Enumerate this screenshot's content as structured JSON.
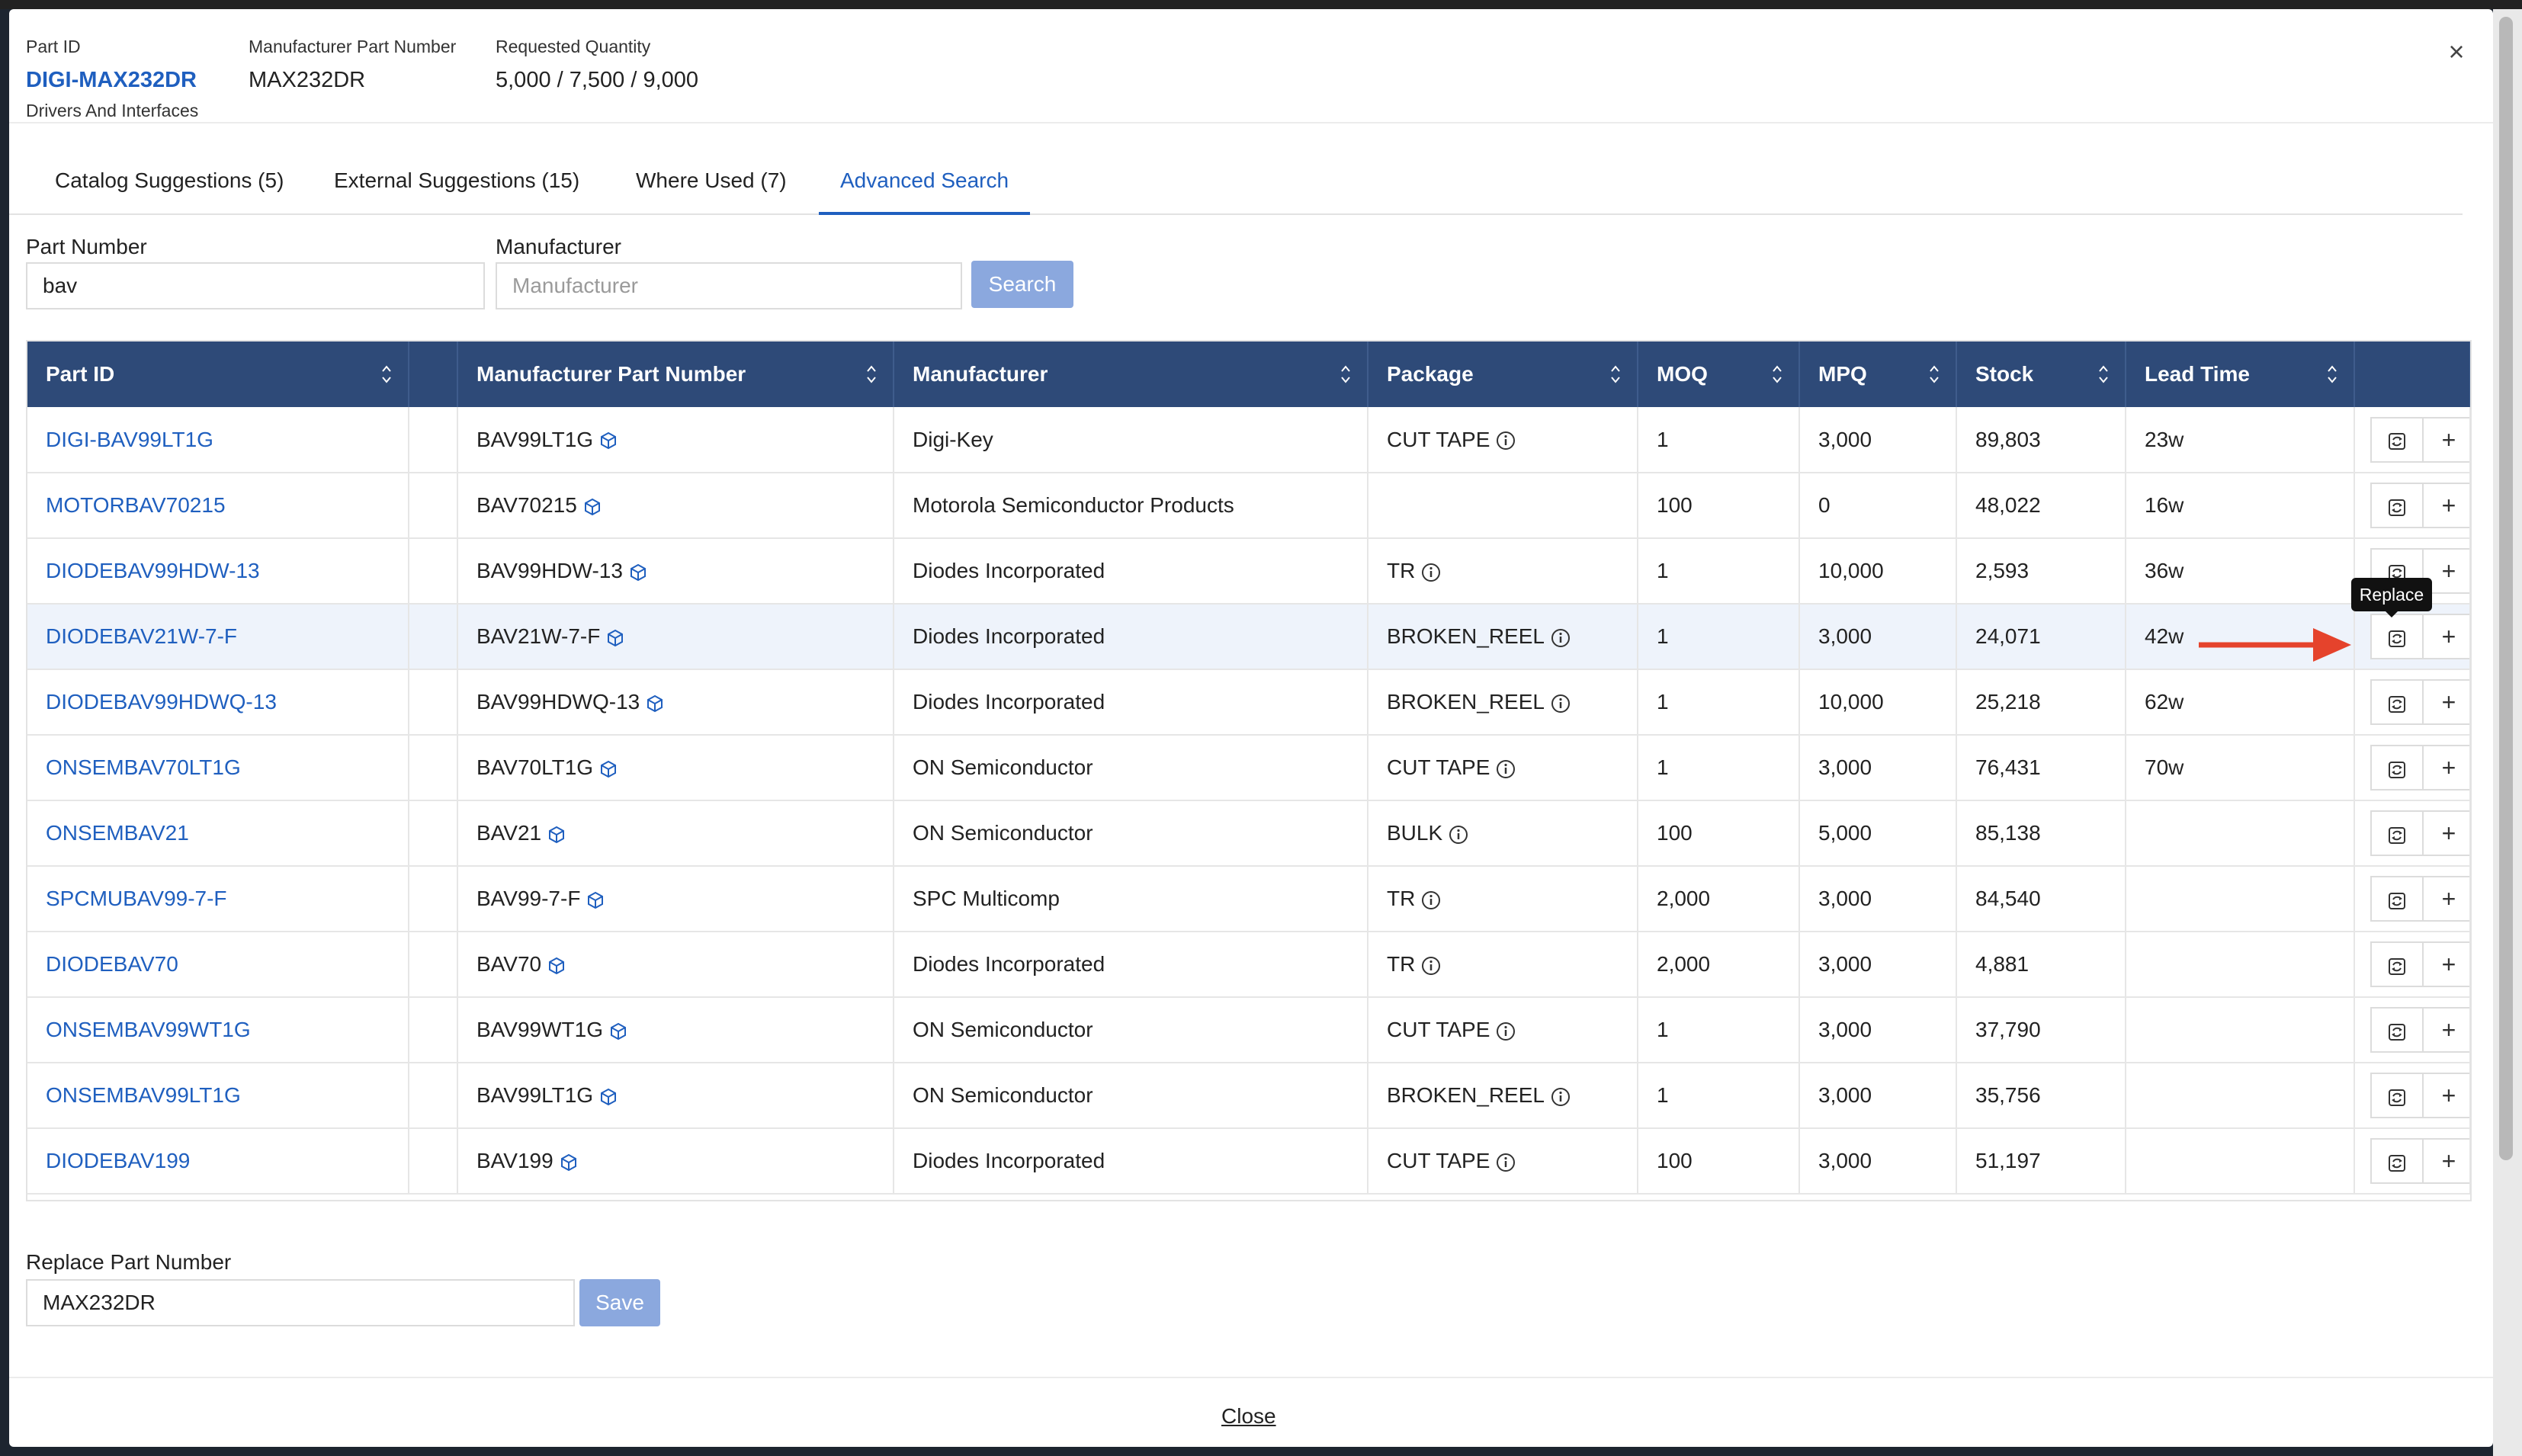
{
  "header": {
    "part_id_label": "Part ID",
    "part_id_value": "DIGI-MAX232DR",
    "part_category": "Drivers And Interfaces",
    "mpn_label": "Manufacturer Part Number",
    "mpn_value": "MAX232DR",
    "qty_label": "Requested Quantity",
    "qty_value": "5,000 / 7,500 / 9,000",
    "close_icon": "×"
  },
  "tabs": [
    {
      "label": "Catalog Suggestions (5)"
    },
    {
      "label": "External Suggestions (15)"
    },
    {
      "label": "Where Used (7)"
    },
    {
      "label": "Advanced Search",
      "active": true
    }
  ],
  "search": {
    "part_number_label": "Part Number",
    "part_number_value": "bav",
    "manufacturer_label": "Manufacturer",
    "manufacturer_placeholder": "Manufacturer",
    "search_button": "Search"
  },
  "table": {
    "columns": [
      "Part ID",
      "",
      "Manufacturer Part Number",
      "Manufacturer",
      "Package",
      "MOQ",
      "MPQ",
      "Stock",
      "Lead Time",
      ""
    ],
    "rows": [
      {
        "part_id": "DIGI-BAV99LT1G",
        "mpn": "BAV99LT1G",
        "manufacturer": "Digi-Key",
        "package": "CUT TAPE",
        "moq": "1",
        "mpq": "3,000",
        "stock": "89,803",
        "lead": "23w"
      },
      {
        "part_id": "MOTORBAV70215",
        "mpn": "BAV70215",
        "manufacturer": "Motorola Semiconductor Products",
        "package": "",
        "moq": "100",
        "mpq": "0",
        "stock": "48,022",
        "lead": "16w"
      },
      {
        "part_id": "DIODEBAV99HDW-13",
        "mpn": "BAV99HDW-13",
        "manufacturer": "Diodes Incorporated",
        "package": "TR",
        "moq": "1",
        "mpq": "10,000",
        "stock": "2,593",
        "lead": "36w"
      },
      {
        "part_id": "DIODEBAV21W-7-F",
        "mpn": "BAV21W-7-F",
        "manufacturer": "Diodes Incorporated",
        "package": "BROKEN_REEL",
        "moq": "1",
        "mpq": "3,000",
        "stock": "24,071",
        "lead": "42w"
      },
      {
        "part_id": "DIODEBAV99HDWQ-13",
        "mpn": "BAV99HDWQ-13",
        "manufacturer": "Diodes Incorporated",
        "package": "BROKEN_REEL",
        "moq": "1",
        "mpq": "10,000",
        "stock": "25,218",
        "lead": "62w"
      },
      {
        "part_id": "ONSEMBAV70LT1G",
        "mpn": "BAV70LT1G",
        "manufacturer": "ON Semiconductor",
        "package": "CUT TAPE",
        "moq": "1",
        "mpq": "3,000",
        "stock": "76,431",
        "lead": "70w"
      },
      {
        "part_id": "ONSEMBAV21",
        "mpn": "BAV21",
        "manufacturer": "ON Semiconductor",
        "package": "BULK",
        "moq": "100",
        "mpq": "5,000",
        "stock": "85,138",
        "lead": ""
      },
      {
        "part_id": "SPCMUBAV99-7-F",
        "mpn": "BAV99-7-F",
        "manufacturer": "SPC Multicomp",
        "package": "TR",
        "moq": "2,000",
        "mpq": "3,000",
        "stock": "84,540",
        "lead": ""
      },
      {
        "part_id": "DIODEBAV70",
        "mpn": "BAV70",
        "manufacturer": "Diodes Incorporated",
        "package": "TR",
        "moq": "2,000",
        "mpq": "3,000",
        "stock": "4,881",
        "lead": ""
      },
      {
        "part_id": "ONSEMBAV99WT1G",
        "mpn": "BAV99WT1G",
        "manufacturer": "ON Semiconductor",
        "package": "CUT TAPE",
        "moq": "1",
        "mpq": "3,000",
        "stock": "37,790",
        "lead": ""
      },
      {
        "part_id": "ONSEMBAV99LT1G",
        "mpn": "BAV99LT1G",
        "manufacturer": "ON Semiconductor",
        "package": "BROKEN_REEL",
        "moq": "1",
        "mpq": "3,000",
        "stock": "35,756",
        "lead": ""
      },
      {
        "part_id": "DIODEBAV199",
        "mpn": "BAV199",
        "manufacturer": "Diodes Incorporated",
        "package": "CUT TAPE",
        "moq": "100",
        "mpq": "3,000",
        "stock": "51,197",
        "lead": ""
      }
    ],
    "highlighted_row": 3,
    "add_label": "+"
  },
  "tooltip": {
    "label": "Replace"
  },
  "replace": {
    "label": "Replace Part Number",
    "value": "MAX232DR",
    "save_button": "Save"
  },
  "footer": {
    "close_label": "Close"
  },
  "colors": {
    "header_bg": "#2e4a78",
    "link": "#1f5fbf",
    "button": "#8ba8de",
    "arrow": "#e5432c"
  }
}
